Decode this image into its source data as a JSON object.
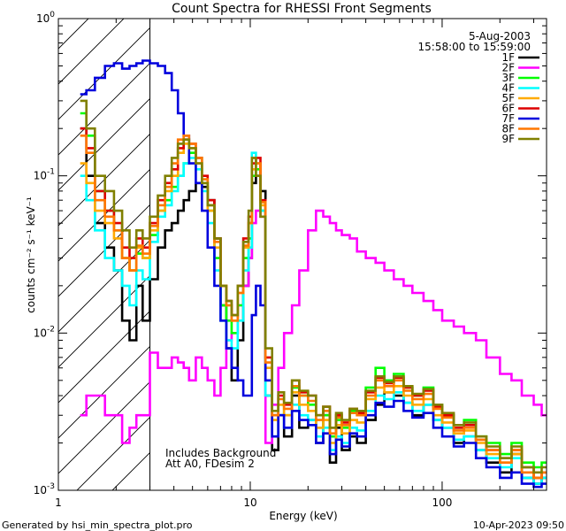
{
  "chart_data": {
    "type": "line",
    "title": "Count Spectra for RHESSI Front Segments",
    "xlabel": "Energy (keV)",
    "ylabel": "counts cm⁻² s⁻¹ keV⁻¹",
    "x_scale": "log",
    "y_scale": "log",
    "xlim": [
      1.0,
      350.0
    ],
    "ylim": [
      0.001,
      1.0
    ],
    "x_ticks": [
      {
        "value": 1,
        "label": "1"
      },
      {
        "value": 10,
        "label": "10"
      },
      {
        "value": 100,
        "label": "100"
      }
    ],
    "y_ticks": [
      {
        "value": 1,
        "label": "10",
        "sup": "0"
      },
      {
        "value": 0.1,
        "label": "10",
        "sup": "-1"
      },
      {
        "value": 0.01,
        "label": "10",
        "sup": "-2"
      },
      {
        "value": 0.001,
        "label": "10",
        "sup": "-3"
      }
    ],
    "hatched_region": {
      "x_from": 1.0,
      "x_to": 3.0
    },
    "date": "5-Aug-2003",
    "time_range": "15:58:00 to 15:59:00",
    "annotations": [
      "Includes Background",
      "Att A0, FDesim 2"
    ],
    "footer_left": "Generated by hsi_min_spectra_plot.pro",
    "footer_right": "10-Apr-2023 09:50",
    "energy_bins": [
      1.3,
      1.4,
      1.55,
      1.75,
      1.95,
      2.15,
      2.35,
      2.55,
      2.75,
      3.0,
      3.3,
      3.6,
      3.9,
      4.2,
      4.5,
      4.8,
      5.2,
      5.6,
      6.0,
      6.5,
      7.0,
      7.5,
      8.0,
      8.6,
      9.2,
      9.8,
      10.2,
      10.7,
      11.3,
      12.0,
      13,
      14,
      15,
      16.5,
      18,
      20,
      22,
      24,
      26,
      28,
      30,
      33,
      36,
      40,
      45,
      50,
      56,
      63,
      70,
      80,
      90,
      100,
      115,
      130,
      150,
      170,
      200,
      230,
      260,
      300,
      330
    ],
    "series": [
      {
        "name": "1F",
        "color": "#000000",
        "values": [
          0.2,
          0.1,
          0.05,
          0.035,
          0.025,
          0.012,
          0.009,
          0.02,
          0.012,
          0.022,
          0.035,
          0.045,
          0.05,
          0.06,
          0.07,
          0.08,
          0.09,
          0.085,
          0.07,
          0.04,
          0.015,
          0.008,
          0.005,
          0.009,
          0.02,
          0.03,
          0.09,
          0.1,
          0.08,
          0.004,
          0.0018,
          0.003,
          0.0022,
          0.004,
          0.0025,
          0.0028,
          0.002,
          0.003,
          0.0015,
          0.0025,
          0.0018,
          0.0022,
          0.002,
          0.0028,
          0.0035,
          0.0042,
          0.004,
          0.0036,
          0.003,
          0.0035,
          0.0028,
          0.0025,
          0.002,
          0.0022,
          0.0018,
          0.0015,
          0.0013,
          0.0017,
          0.0012,
          0.0011,
          0.0012
        ]
      },
      {
        "name": "2F",
        "color": "#ff00ff",
        "values": [
          0.003,
          0.004,
          0.004,
          0.003,
          0.003,
          0.002,
          0.0025,
          0.003,
          0.003,
          0.0075,
          0.006,
          0.006,
          0.007,
          0.0065,
          0.006,
          0.005,
          0.007,
          0.006,
          0.005,
          0.004,
          0.006,
          0.009,
          0.01,
          0.015,
          0.02,
          0.03,
          0.05,
          0.06,
          0.055,
          0.002,
          0.0035,
          0.006,
          0.01,
          0.015,
          0.025,
          0.045,
          0.06,
          0.055,
          0.05,
          0.045,
          0.042,
          0.04,
          0.033,
          0.03,
          0.028,
          0.025,
          0.022,
          0.02,
          0.018,
          0.016,
          0.014,
          0.012,
          0.011,
          0.01,
          0.009,
          0.007,
          0.0055,
          0.005,
          0.004,
          0.0035,
          0.003
        ]
      },
      {
        "name": "3F",
        "color": "#00ff00",
        "values": [
          0.25,
          0.18,
          0.08,
          0.06,
          0.045,
          0.03,
          0.025,
          0.032,
          0.03,
          0.042,
          0.06,
          0.07,
          0.085,
          0.1,
          0.12,
          0.14,
          0.13,
          0.09,
          0.06,
          0.03,
          0.015,
          0.012,
          0.01,
          0.015,
          0.03,
          0.04,
          0.1,
          0.11,
          0.06,
          0.005,
          0.003,
          0.0035,
          0.003,
          0.0045,
          0.004,
          0.0035,
          0.0025,
          0.003,
          0.0022,
          0.0028,
          0.0025,
          0.0032,
          0.003,
          0.0045,
          0.006,
          0.005,
          0.0055,
          0.0045,
          0.004,
          0.0045,
          0.0035,
          0.003,
          0.0025,
          0.0028,
          0.0022,
          0.002,
          0.0017,
          0.002,
          0.0015,
          0.0014,
          0.0015
        ]
      },
      {
        "name": "4F",
        "color": "#00ffff",
        "values": [
          0.1,
          0.07,
          0.045,
          0.03,
          0.025,
          0.02,
          0.015,
          0.025,
          0.022,
          0.038,
          0.055,
          0.065,
          0.08,
          0.1,
          0.12,
          0.13,
          0.11,
          0.08,
          0.05,
          0.025,
          0.012,
          0.009,
          0.008,
          0.012,
          0.025,
          0.035,
          0.14,
          0.12,
          0.06,
          0.004,
          0.0022,
          0.003,
          0.0025,
          0.0035,
          0.003,
          0.0028,
          0.0022,
          0.0025,
          0.0018,
          0.0022,
          0.002,
          0.0025,
          0.0024,
          0.0032,
          0.004,
          0.0038,
          0.0042,
          0.0036,
          0.0032,
          0.0035,
          0.0028,
          0.0025,
          0.0021,
          0.0022,
          0.0018,
          0.0016,
          0.0014,
          0.0016,
          0.0012,
          0.0011,
          0.0012
        ]
      },
      {
        "name": "5F",
        "color": "#ffaa00",
        "values": [
          0.12,
          0.09,
          0.06,
          0.05,
          0.04,
          0.03,
          0.025,
          0.035,
          0.03,
          0.045,
          0.06,
          0.08,
          0.1,
          0.14,
          0.16,
          0.15,
          0.12,
          0.09,
          0.06,
          0.035,
          0.02,
          0.015,
          0.012,
          0.018,
          0.035,
          0.05,
          0.11,
          0.12,
          0.065,
          0.006,
          0.0028,
          0.0035,
          0.003,
          0.0042,
          0.0035,
          0.0032,
          0.0025,
          0.0028,
          0.002,
          0.0026,
          0.0023,
          0.0028,
          0.0027,
          0.0038,
          0.0045,
          0.0042,
          0.0046,
          0.004,
          0.0035,
          0.0038,
          0.003,
          0.0027,
          0.0023,
          0.0024,
          0.002,
          0.0017,
          0.0015,
          0.0017,
          0.0013,
          0.0012,
          0.0013
        ]
      },
      {
        "name": "6F",
        "color": "#dd0000",
        "values": [
          0.2,
          0.15,
          0.08,
          0.06,
          0.05,
          0.035,
          0.03,
          0.04,
          0.035,
          0.05,
          0.07,
          0.09,
          0.11,
          0.15,
          0.17,
          0.16,
          0.13,
          0.1,
          0.07,
          0.04,
          0.02,
          0.016,
          0.013,
          0.02,
          0.04,
          0.055,
          0.12,
          0.13,
          0.07,
          0.007,
          0.003,
          0.004,
          0.0035,
          0.005,
          0.0042,
          0.004,
          0.003,
          0.0034,
          0.0025,
          0.003,
          0.0027,
          0.0033,
          0.0031,
          0.0042,
          0.0052,
          0.0048,
          0.0052,
          0.0045,
          0.004,
          0.0043,
          0.0034,
          0.003,
          0.0025,
          0.0026,
          0.0021,
          0.0018,
          0.0016,
          0.0018,
          0.0014,
          0.0012,
          0.0013
        ]
      },
      {
        "name": "7F",
        "color": "#0000dd",
        "values": [
          0.33,
          0.35,
          0.42,
          0.5,
          0.52,
          0.48,
          0.5,
          0.52,
          0.54,
          0.52,
          0.5,
          0.45,
          0.35,
          0.25,
          0.18,
          0.12,
          0.09,
          0.06,
          0.035,
          0.02,
          0.012,
          0.008,
          0.006,
          0.005,
          0.004,
          0.004,
          0.013,
          0.02,
          0.015,
          0.005,
          0.0022,
          0.003,
          0.0025,
          0.0032,
          0.0028,
          0.0026,
          0.002,
          0.0023,
          0.0017,
          0.0021,
          0.0019,
          0.0023,
          0.0022,
          0.003,
          0.0036,
          0.0034,
          0.0037,
          0.0032,
          0.0029,
          0.0031,
          0.0025,
          0.0022,
          0.0019,
          0.002,
          0.0016,
          0.0014,
          0.0012,
          0.0013,
          0.0011,
          0.00105,
          0.0011
        ]
      },
      {
        "name": "8F",
        "color": "#ff7700",
        "values": [
          0.18,
          0.14,
          0.07,
          0.055,
          0.045,
          0.03,
          0.025,
          0.036,
          0.032,
          0.048,
          0.065,
          0.085,
          0.12,
          0.17,
          0.18,
          0.16,
          0.13,
          0.095,
          0.065,
          0.038,
          0.02,
          0.015,
          0.012,
          0.018,
          0.036,
          0.05,
          0.13,
          0.12,
          0.068,
          0.0065,
          0.003,
          0.0038,
          0.0033,
          0.0046,
          0.004,
          0.0037,
          0.0028,
          0.0032,
          0.0023,
          0.0029,
          0.0026,
          0.0031,
          0.003,
          0.004,
          0.005,
          0.0046,
          0.005,
          0.0043,
          0.0038,
          0.0041,
          0.0033,
          0.0029,
          0.0024,
          0.0025,
          0.0021,
          0.0018,
          0.0015,
          0.0018,
          0.0013,
          0.0012,
          0.0013
        ]
      },
      {
        "name": "9F",
        "color": "#808000",
        "values": [
          0.3,
          0.2,
          0.1,
          0.08,
          0.06,
          0.045,
          0.035,
          0.045,
          0.04,
          0.055,
          0.075,
          0.1,
          0.13,
          0.16,
          0.17,
          0.15,
          0.12,
          0.09,
          0.065,
          0.04,
          0.02,
          0.016,
          0.013,
          0.02,
          0.038,
          0.06,
          0.13,
          0.1,
          0.055,
          0.008,
          0.0032,
          0.0042,
          0.0036,
          0.005,
          0.0043,
          0.004,
          0.003,
          0.0034,
          0.0025,
          0.0031,
          0.0028,
          0.0033,
          0.0032,
          0.0043,
          0.0053,
          0.0049,
          0.0053,
          0.0046,
          0.0041,
          0.0044,
          0.0035,
          0.0031,
          0.0026,
          0.0027,
          0.0022,
          0.0019,
          0.0016,
          0.0019,
          0.0014,
          0.0013,
          0.0014
        ]
      }
    ]
  }
}
